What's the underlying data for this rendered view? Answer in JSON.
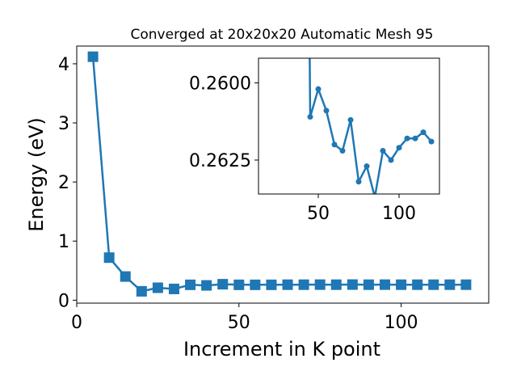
{
  "chart_data": {
    "title": "Converged at 20x20x20 Automatic Mesh 95",
    "main": {
      "type": "line",
      "xlabel": "Increment in K point",
      "ylabel": "Energy (eV)",
      "xlim": [
        0,
        127
      ],
      "ylim": [
        -0.05,
        4.3
      ],
      "xticks": [
        0,
        50,
        100
      ],
      "yticks": [
        0,
        1,
        2,
        3,
        4
      ],
      "series": [
        {
          "marker": "square",
          "color": "#1f77b4",
          "x": [
            5,
            10,
            15,
            20,
            25,
            30,
            35,
            40,
            45,
            50,
            55,
            60,
            65,
            70,
            75,
            80,
            85,
            90,
            95,
            100,
            105,
            110,
            115,
            120
          ],
          "y": [
            4.12,
            0.72,
            0.4,
            0.15,
            0.21,
            0.19,
            0.26,
            0.25,
            0.27,
            0.26,
            0.26,
            0.26,
            0.262,
            0.262,
            0.263,
            0.262,
            0.264,
            0.262,
            0.263,
            0.262,
            0.262,
            0.262,
            0.262,
            0.262
          ]
        }
      ]
    },
    "inset": {
      "type": "line",
      "xlim": [
        13,
        125
      ],
      "ylim": [
        0.2592,
        0.2636
      ],
      "inverted_y": true,
      "xticks": [
        50,
        100
      ],
      "yticks": [
        0.26,
        0.2625
      ],
      "ytick_labels": [
        "0.2600",
        "0.2625"
      ],
      "series": [
        {
          "marker": "circle",
          "color": "#1f77b4",
          "x": [
            45,
            50,
            55,
            60,
            65,
            70,
            75,
            80,
            85,
            90,
            95,
            100,
            105,
            110,
            115,
            120
          ],
          "y": [
            0.2611,
            0.2602,
            0.2609,
            0.262,
            0.2622,
            0.2612,
            0.2632,
            0.2627,
            0.2637,
            0.2622,
            0.2625,
            0.2621,
            0.2618,
            0.2618,
            0.2616,
            0.2619
          ]
        }
      ],
      "off_chart_entry": {
        "x": 44.5,
        "y": 0.258
      }
    }
  }
}
